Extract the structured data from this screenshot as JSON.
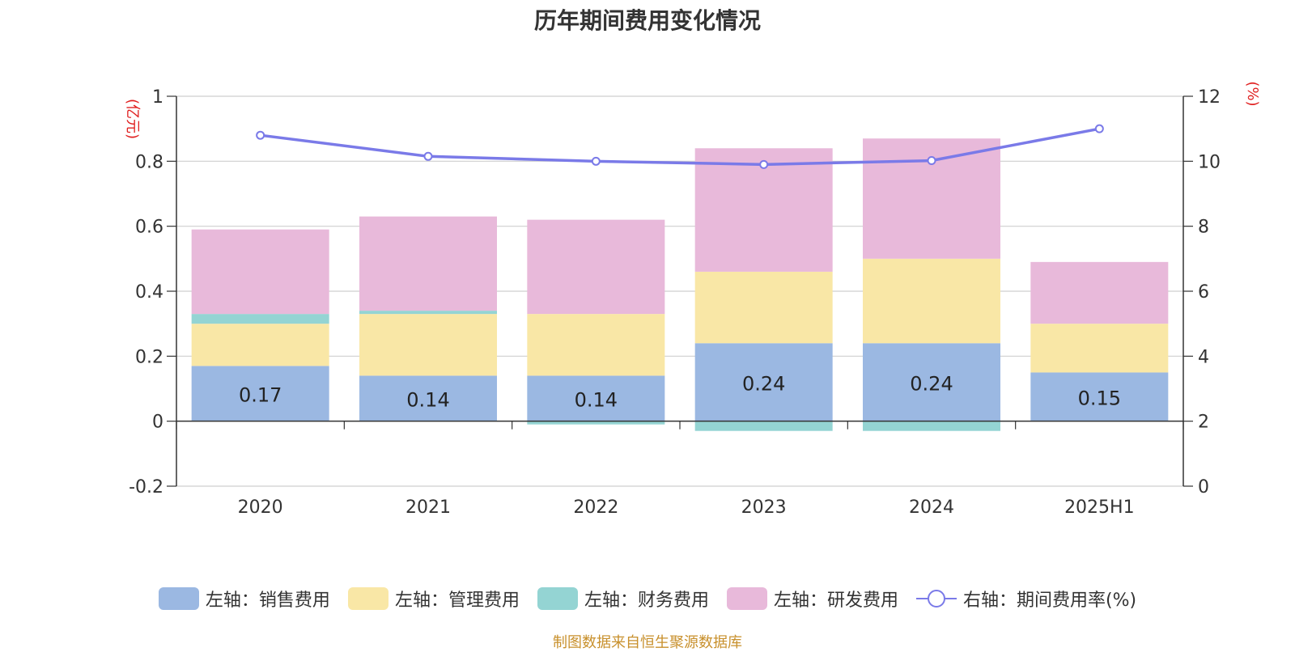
{
  "chart_data": {
    "type": "bar",
    "stacked": true,
    "title": "历年期间费用变化情况",
    "categories": [
      "2020",
      "2021",
      "2022",
      "2023",
      "2024",
      "2025H1"
    ],
    "y_left": {
      "unit_label": "(亿元)",
      "ylim": [
        -0.2,
        1
      ],
      "ticks": [
        -0.2,
        0,
        0.2,
        0.4,
        0.6,
        0.8,
        1
      ]
    },
    "y_right": {
      "unit_label": "(%)",
      "ylim": [
        0,
        12
      ],
      "ticks": [
        0,
        2,
        4,
        6,
        8,
        10,
        12
      ]
    },
    "series": [
      {
        "name": "左轴：销售费用",
        "type": "bar",
        "axis": "left",
        "color": "#9bb8e2",
        "values": [
          0.17,
          0.14,
          0.14,
          0.24,
          0.24,
          0.15
        ],
        "data_labels": [
          "0.17",
          "0.14",
          "0.14",
          "0.24",
          "0.24",
          "0.15"
        ]
      },
      {
        "name": "左轴：管理费用",
        "type": "bar",
        "axis": "left",
        "color": "#f9e7a6",
        "values": [
          0.13,
          0.19,
          0.19,
          0.22,
          0.26,
          0.15
        ]
      },
      {
        "name": "左轴：财务费用",
        "type": "bar",
        "axis": "left",
        "color": "#94d4d3",
        "values": [
          0.03,
          0.01,
          -0.01,
          -0.03,
          -0.03,
          0.0
        ]
      },
      {
        "name": "左轴：研发费用",
        "type": "bar",
        "axis": "left",
        "color": "#e8b9da",
        "values": [
          0.26,
          0.29,
          0.29,
          0.38,
          0.37,
          0.19
        ]
      },
      {
        "name": "右轴：期间费用率(%)",
        "type": "line",
        "axis": "right",
        "color": "#7a7ae8",
        "values": [
          10.8,
          10.15,
          10.0,
          9.9,
          10.02,
          11.0
        ]
      }
    ],
    "legend_position": "bottom",
    "grid": true
  },
  "source_note": "制图数据来自恒生聚源数据库"
}
